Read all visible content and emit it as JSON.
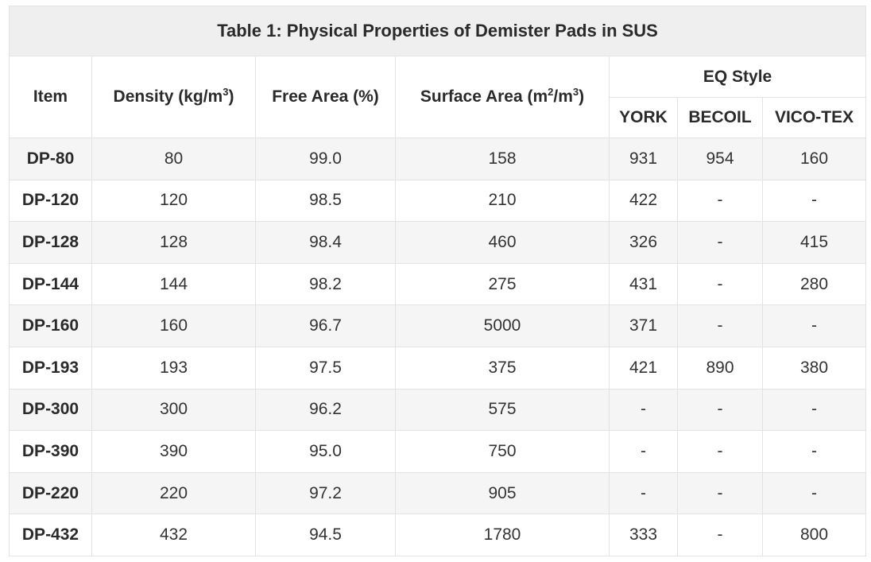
{
  "caption": "Table 1: Physical Properties of Demister Pads in SUS",
  "headers": {
    "item": "Item",
    "density": "Density (kg/m",
    "density_sup": "3",
    "density_close": ")",
    "free_area": "Free Area (%)",
    "surface_area_pre": "Surface Area (m",
    "surface_area_sup1": "2",
    "surface_area_mid": "/m",
    "surface_area_sup2": "3",
    "surface_area_close": ")",
    "eq_style": "EQ Style",
    "york": "YORK",
    "becoil": "BECOIL",
    "vicotex": "VICO-TEX"
  },
  "rows": [
    {
      "item": "DP-80",
      "density": "80",
      "free_area": "99.0",
      "surface_area": "158",
      "york": "931",
      "becoil": "954",
      "vicotex": "160"
    },
    {
      "item": "DP-120",
      "density": "120",
      "free_area": "98.5",
      "surface_area": "210",
      "york": "422",
      "becoil": "-",
      "vicotex": "-"
    },
    {
      "item": "DP-128",
      "density": "128",
      "free_area": "98.4",
      "surface_area": "460",
      "york": "326",
      "becoil": "-",
      "vicotex": "415"
    },
    {
      "item": "DP-144",
      "density": "144",
      "free_area": "98.2",
      "surface_area": "275",
      "york": "431",
      "becoil": "-",
      "vicotex": "280"
    },
    {
      "item": "DP-160",
      "density": "160",
      "free_area": "96.7",
      "surface_area": "5000",
      "york": "371",
      "becoil": "-",
      "vicotex": "-"
    },
    {
      "item": "DP-193",
      "density": "193",
      "free_area": "97.5",
      "surface_area": "375",
      "york": "421",
      "becoil": "890",
      "vicotex": "380"
    },
    {
      "item": "DP-300",
      "density": "300",
      "free_area": "96.2",
      "surface_area": "575",
      "york": "-",
      "becoil": "-",
      "vicotex": "-"
    },
    {
      "item": "DP-390",
      "density": "390",
      "free_area": "95.0",
      "surface_area": "750",
      "york": "-",
      "becoil": "-",
      "vicotex": "-"
    },
    {
      "item": "DP-220",
      "density": "220",
      "free_area": "97.2",
      "surface_area": "905",
      "york": "-",
      "becoil": "-",
      "vicotex": "-"
    },
    {
      "item": "DP-432",
      "density": "432",
      "free_area": "94.5",
      "surface_area": "1780",
      "york": "333",
      "becoil": "-",
      "vicotex": "800"
    }
  ]
}
